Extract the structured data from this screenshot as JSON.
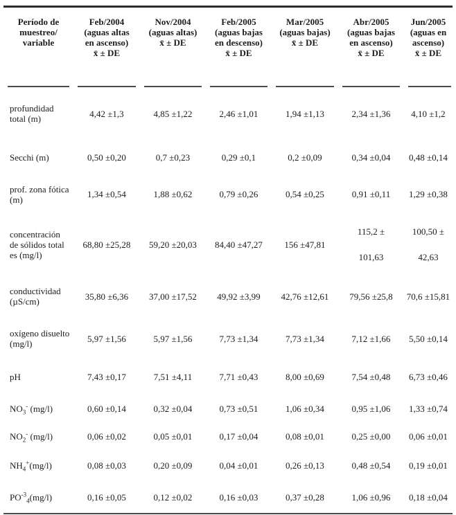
{
  "table": {
    "stat_notation": "x̄ ± DE",
    "columns": [
      {
        "name": "periodo-variable",
        "header_lines": [
          "Período de",
          "muestreo/",
          "variable"
        ]
      },
      {
        "name": "feb-2004",
        "header_lines": [
          "Feb/2004",
          "(aguas altas",
          "en ascenso)",
          "x̄ ± DE"
        ]
      },
      {
        "name": "nov-2004",
        "header_lines": [
          "Nov/2004",
          "(aguas altas)",
          "x̄ ± DE"
        ]
      },
      {
        "name": "feb-2005",
        "header_lines": [
          "Feb/2005",
          "(aguas bajas",
          "en descenso)",
          "x̄ ± DE"
        ]
      },
      {
        "name": "mar-2005",
        "header_lines": [
          "Mar/2005",
          "(aguas bajas)",
          "x̄ ± DE"
        ]
      },
      {
        "name": "abr-2005",
        "header_lines": [
          "Abr/2005",
          "(aguas bajas",
          "en ascenso)",
          "x̄ ± DE"
        ]
      },
      {
        "name": "jun-2005",
        "header_lines": [
          "Jun/2005",
          "(aguas en",
          "ascenso)",
          "x̄ ± DE"
        ]
      }
    ],
    "rows": [
      {
        "name": "profundidad-total",
        "label_parts": [
          {
            "t": "profundidad total (m)"
          }
        ],
        "values": [
          "4,42 ±1,3",
          "4,85 ±1,22",
          "2,46 ±1,01",
          "1,94 ±1,13",
          "2,34 ±1,36",
          "4,10 ±1,2"
        ]
      },
      {
        "name": "secchi",
        "label_parts": [
          {
            "t": "Secchi (m)"
          }
        ],
        "values": [
          "0,50 ±0,20",
          "0,7 ±0,23",
          "0,29 ±0,1",
          "0,2 ±0,09",
          "0,34 ±0,04",
          "0,48 ±0,14"
        ]
      },
      {
        "name": "prof-zona-fotica",
        "label_parts": [
          {
            "t": "prof. zona fótica (m)"
          }
        ],
        "values": [
          "1,34 ±0,54",
          "1,88 ±0,62",
          "0,79 ±0,26",
          "0,54 ±0,25",
          "0,91 ±0,11",
          "1,29 ±0,38"
        ]
      },
      {
        "name": "concentracion-solidos-totales",
        "label_parts": [
          {
            "t": "concentración de sólidos total es (mg/l)"
          }
        ],
        "values": [
          "68,80 ±25,28",
          "59,20 ±20,03",
          "84,40 ±47,27",
          "156 ±47,81",
          "115,2 ±\n101,63",
          "100,50 ±\n42,63"
        ]
      },
      {
        "name": "conductividad",
        "label_parts": [
          {
            "t": "conductividad (µS/cm)"
          }
        ],
        "values": [
          "35,80 ±6,36",
          "37,00 ±17,52",
          "49,92 ±3,99",
          "42,76 ±12,61",
          "79,56 ±25,8",
          "70,6 ±15,81"
        ]
      },
      {
        "name": "oxigeno-disuelto",
        "label_parts": [
          {
            "t": "oxígeno disuelto (mg/l)"
          }
        ],
        "values": [
          "5,97 ±1,56",
          "5,97 ±1,56",
          "7,73 ±1,34",
          "7,73 ±1,34",
          "7,12 ±1,66",
          "5,50 ±0,14"
        ]
      },
      {
        "name": "ph",
        "label_parts": [
          {
            "t": "pH"
          }
        ],
        "values": [
          "7,43 ±0,17",
          "7,51 ±4,11",
          "7,71 ±0,43",
          "8,00 ±0,69",
          "7,54 ±0,48",
          "6,73 ±0,46"
        ]
      },
      {
        "name": "no3",
        "label_parts": [
          {
            "t": "NO"
          },
          {
            "t": "3",
            "style": "sub"
          },
          {
            "t": "-",
            "style": "sup"
          },
          {
            "t": " (mg/l)"
          }
        ],
        "values": [
          "0,60 ±0,14",
          "0,32 ±0,04",
          "0,73 ±0,51",
          "1,06 ±0,34",
          "0,95 ±1,06",
          "1,33 ±0,74"
        ]
      },
      {
        "name": "no2",
        "label_parts": [
          {
            "t": "NO"
          },
          {
            "t": "2",
            "style": "sub"
          },
          {
            "t": "-",
            "style": "sup"
          },
          {
            "t": " (mg/l)"
          }
        ],
        "values": [
          "0,06 ±0,02",
          "0,05 ±0,01",
          "0,17 ±0,04",
          "0,08 ±0,01",
          "0,25 ±0,00",
          "0,06 ±0,01"
        ]
      },
      {
        "name": "nh4",
        "label_parts": [
          {
            "t": "NH"
          },
          {
            "t": "4",
            "style": "sub"
          },
          {
            "t": "+",
            "style": "sup"
          },
          {
            "t": "(mg/l)"
          }
        ],
        "values": [
          "0,08 ±0,03",
          "0,20 ±0,09",
          "0,04 ±0,01",
          "0,26 ±0,13",
          "0,48 ±0,54",
          "0,19 ±0,01"
        ]
      },
      {
        "name": "po4",
        "label_parts": [
          {
            "t": "PO"
          },
          {
            "t": "-3",
            "style": "sup"
          },
          {
            "t": "4",
            "style": "sub"
          },
          {
            "t": "(mg/l)"
          }
        ],
        "values": [
          "0,16 ±0,05",
          "0,12 ±0,02",
          "0,16 ±0,03",
          "0,37 ±0,28",
          "1,06 ±0,96",
          "0,18 ±0,04"
        ]
      }
    ]
  }
}
